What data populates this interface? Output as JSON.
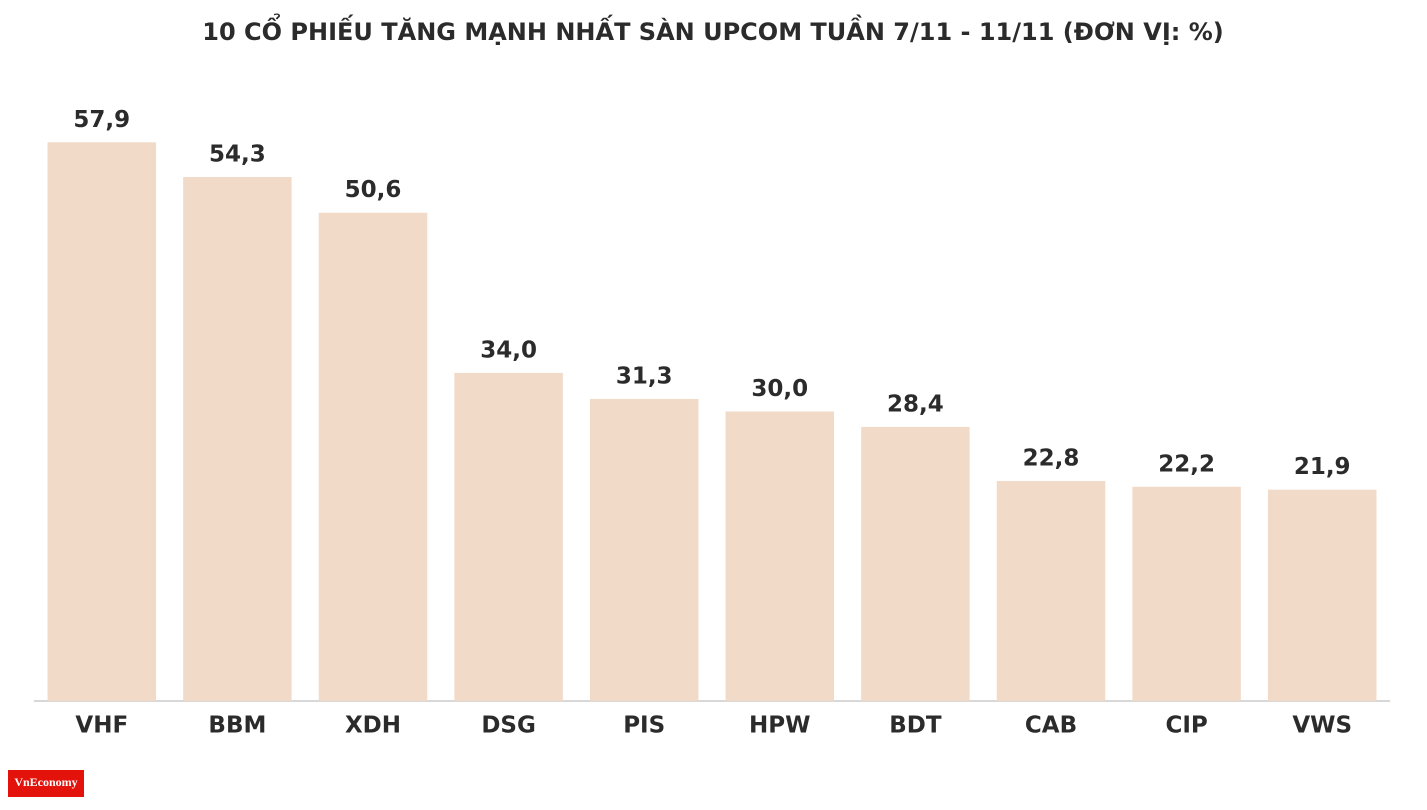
{
  "chart_data": {
    "type": "bar",
    "title": "10 CỔ PHIẾU TĂNG MẠNH NHẤT SÀN UPCOM TUẦN 7/11 - 11/11 (ĐƠN VỊ: %)",
    "categories": [
      "VHF",
      "BBM",
      "XDH",
      "DSG",
      "PIS",
      "HPW",
      "BDT",
      "CAB",
      "CIP",
      "VWS"
    ],
    "values": [
      57.9,
      54.3,
      50.6,
      34.0,
      31.3,
      30.0,
      28.4,
      22.8,
      22.2,
      21.9
    ],
    "value_labels": [
      "57,9",
      "54,3",
      "50,6",
      "34,0",
      "31,3",
      "30,0",
      "28,4",
      "22,8",
      "22,2",
      "21,9"
    ],
    "color": "#f2dac8",
    "ylim": [
      0,
      60
    ],
    "grid": false,
    "logo": "VnEconomy"
  }
}
